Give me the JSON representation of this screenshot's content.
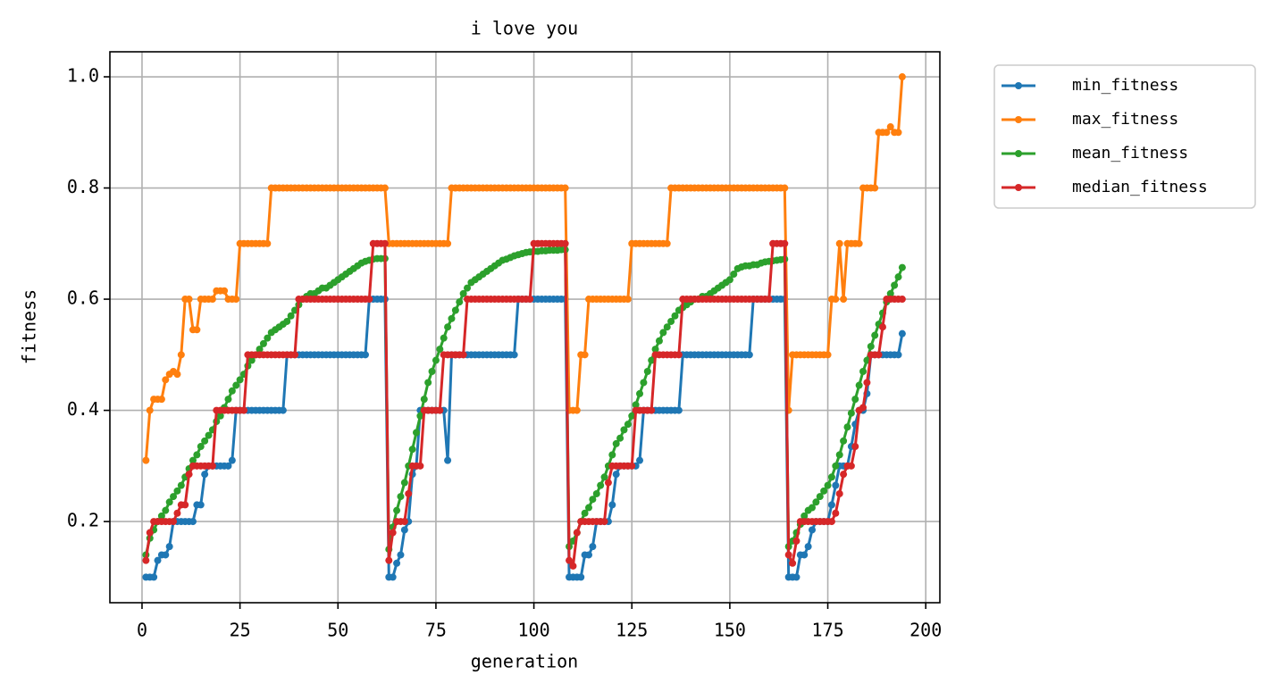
{
  "chart_data": {
    "type": "line",
    "title": "i love you",
    "xlabel": "generation",
    "ylabel": "fitness",
    "xlim": [
      -8.2,
      203.6
    ],
    "xticks": [
      0,
      25,
      50,
      75,
      100,
      125,
      150,
      175,
      200
    ],
    "ylim": [
      0.054,
      1.045
    ],
    "yticks": [
      0.2,
      0.4,
      0.6,
      0.8,
      {
        "value": 1,
        "label": "1.0"
      }
    ],
    "grid": true,
    "legend": "outside upper right",
    "x": [
      1,
      2,
      3,
      4,
      5,
      6,
      7,
      8,
      9,
      10,
      11,
      12,
      13,
      14,
      15,
      16,
      17,
      18,
      19,
      20,
      21,
      22,
      23,
      24,
      25,
      26,
      27,
      28,
      29,
      30,
      31,
      32,
      33,
      34,
      35,
      36,
      37,
      38,
      39,
      40,
      41,
      42,
      43,
      44,
      45,
      46,
      47,
      48,
      49,
      50,
      51,
      52,
      53,
      54,
      55,
      56,
      57,
      58,
      59,
      60,
      61,
      62,
      63,
      64,
      65,
      66,
      67,
      68,
      69,
      70,
      71,
      72,
      73,
      74,
      75,
      76,
      77,
      78,
      79,
      80,
      81,
      82,
      83,
      84,
      85,
      86,
      87,
      88,
      89,
      90,
      91,
      92,
      93,
      94,
      95,
      96,
      97,
      98,
      99,
      100,
      101,
      102,
      103,
      104,
      105,
      106,
      107,
      108,
      109,
      110,
      111,
      112,
      113,
      114,
      115,
      116,
      117,
      118,
      119,
      120,
      121,
      122,
      123,
      124,
      125,
      126,
      127,
      128,
      129,
      130,
      131,
      132,
      133,
      134,
      135,
      136,
      137,
      138,
      139,
      140,
      141,
      142,
      143,
      144,
      145,
      146,
      147,
      148,
      149,
      150,
      151,
      152,
      153,
      154,
      155,
      156,
      157,
      158,
      159,
      160,
      161,
      162,
      163,
      164,
      165,
      166,
      167,
      168,
      169,
      170,
      171,
      172,
      173,
      174,
      175,
      176,
      177,
      178,
      179,
      180,
      181,
      182,
      183,
      184,
      185,
      186,
      187,
      188,
      189,
      190,
      191,
      192,
      193,
      194
    ],
    "series": [
      {
        "name": "min_fitness",
        "color": "#1f77b4",
        "values": [
          0.1,
          0.1,
          0.1,
          0.13,
          0.14,
          0.14,
          0.155,
          0.2,
          0.2,
          0.2,
          0.2,
          0.2,
          0.2,
          0.23,
          0.23,
          0.285,
          0.3,
          0.3,
          0.3,
          0.3,
          0.3,
          0.3,
          0.31,
          0.4,
          0.4,
          0.4,
          0.4,
          0.4,
          0.4,
          0.4,
          0.4,
          0.4,
          0.4,
          0.4,
          0.4,
          0.4,
          0.5,
          0.5,
          0.5,
          0.5,
          0.5,
          0.5,
          0.5,
          0.5,
          0.5,
          0.5,
          0.5,
          0.5,
          0.5,
          0.5,
          0.5,
          0.5,
          0.5,
          0.5,
          0.5,
          0.5,
          0.5,
          0.6,
          0.6,
          0.6,
          0.6,
          0.6,
          0.1,
          0.1,
          0.125,
          0.14,
          0.185,
          0.2,
          0.285,
          0.3,
          0.4,
          0.4,
          0.4,
          0.4,
          0.4,
          0.4,
          0.4,
          0.31,
          0.5,
          0.5,
          0.5,
          0.5,
          0.5,
          0.5,
          0.5,
          0.5,
          0.5,
          0.5,
          0.5,
          0.5,
          0.5,
          0.5,
          0.5,
          0.5,
          0.5,
          0.6,
          0.6,
          0.6,
          0.6,
          0.6,
          0.6,
          0.6,
          0.6,
          0.6,
          0.6,
          0.6,
          0.6,
          0.6,
          0.1,
          0.1,
          0.1,
          0.1,
          0.14,
          0.14,
          0.155,
          0.2,
          0.2,
          0.2,
          0.2,
          0.23,
          0.285,
          0.3,
          0.3,
          0.3,
          0.3,
          0.3,
          0.31,
          0.4,
          0.4,
          0.4,
          0.4,
          0.4,
          0.4,
          0.4,
          0.4,
          0.4,
          0.4,
          0.5,
          0.5,
          0.5,
          0.5,
          0.5,
          0.5,
          0.5,
          0.5,
          0.5,
          0.5,
          0.5,
          0.5,
          0.5,
          0.5,
          0.5,
          0.5,
          0.5,
          0.5,
          0.6,
          0.6,
          0.6,
          0.6,
          0.6,
          0.6,
          0.6,
          0.6,
          0.6,
          0.1,
          0.1,
          0.1,
          0.14,
          0.14,
          0.155,
          0.185,
          0.2,
          0.2,
          0.2,
          0.2,
          0.23,
          0.265,
          0.3,
          0.3,
          0.3,
          0.335,
          0.375,
          0.4,
          0.4,
          0.43,
          0.5,
          0.5,
          0.5,
          0.5,
          0.5,
          0.5,
          0.5,
          0.5,
          0.538
        ]
      },
      {
        "name": "max_fitness",
        "color": "#ff7f0e",
        "values": [
          0.31,
          0.4,
          0.42,
          0.42,
          0.42,
          0.455,
          0.465,
          0.47,
          0.465,
          0.5,
          0.6,
          0.6,
          0.545,
          0.545,
          0.6,
          0.6,
          0.6,
          0.6,
          0.615,
          0.615,
          0.615,
          0.6,
          0.6,
          0.6,
          0.7,
          0.7,
          0.7,
          0.7,
          0.7,
          0.7,
          0.7,
          0.7,
          0.8,
          0.8,
          0.8,
          0.8,
          0.8,
          0.8,
          0.8,
          0.8,
          0.8,
          0.8,
          0.8,
          0.8,
          0.8,
          0.8,
          0.8,
          0.8,
          0.8,
          0.8,
          0.8,
          0.8,
          0.8,
          0.8,
          0.8,
          0.8,
          0.8,
          0.8,
          0.8,
          0.8,
          0.8,
          0.8,
          0.7,
          0.7,
          0.7,
          0.7,
          0.7,
          0.7,
          0.7,
          0.7,
          0.7,
          0.7,
          0.7,
          0.7,
          0.7,
          0.7,
          0.7,
          0.7,
          0.8,
          0.8,
          0.8,
          0.8,
          0.8,
          0.8,
          0.8,
          0.8,
          0.8,
          0.8,
          0.8,
          0.8,
          0.8,
          0.8,
          0.8,
          0.8,
          0.8,
          0.8,
          0.8,
          0.8,
          0.8,
          0.8,
          0.8,
          0.8,
          0.8,
          0.8,
          0.8,
          0.8,
          0.8,
          0.8,
          0.4,
          0.4,
          0.4,
          0.5,
          0.5,
          0.6,
          0.6,
          0.6,
          0.6,
          0.6,
          0.6,
          0.6,
          0.6,
          0.6,
          0.6,
          0.6,
          0.7,
          0.7,
          0.7,
          0.7,
          0.7,
          0.7,
          0.7,
          0.7,
          0.7,
          0.7,
          0.8,
          0.8,
          0.8,
          0.8,
          0.8,
          0.8,
          0.8,
          0.8,
          0.8,
          0.8,
          0.8,
          0.8,
          0.8,
          0.8,
          0.8,
          0.8,
          0.8,
          0.8,
          0.8,
          0.8,
          0.8,
          0.8,
          0.8,
          0.8,
          0.8,
          0.8,
          0.8,
          0.8,
          0.8,
          0.8,
          0.4,
          0.5,
          0.5,
          0.5,
          0.5,
          0.5,
          0.5,
          0.5,
          0.5,
          0.5,
          0.5,
          0.6,
          0.6,
          0.7,
          0.6,
          0.7,
          0.7,
          0.7,
          0.7,
          0.8,
          0.8,
          0.8,
          0.8,
          0.9,
          0.9,
          0.9,
          0.91,
          0.9,
          0.9,
          1.0
        ]
      },
      {
        "name": "mean_fitness",
        "color": "#2ca02c",
        "values": [
          0.14,
          0.17,
          0.185,
          0.2,
          0.21,
          0.22,
          0.235,
          0.245,
          0.255,
          0.265,
          0.28,
          0.295,
          0.31,
          0.32,
          0.335,
          0.345,
          0.355,
          0.365,
          0.38,
          0.39,
          0.405,
          0.42,
          0.435,
          0.445,
          0.455,
          0.465,
          0.48,
          0.49,
          0.5,
          0.51,
          0.52,
          0.53,
          0.54,
          0.545,
          0.55,
          0.555,
          0.56,
          0.57,
          0.58,
          0.59,
          0.6,
          0.605,
          0.61,
          0.61,
          0.615,
          0.62,
          0.62,
          0.625,
          0.63,
          0.635,
          0.64,
          0.645,
          0.65,
          0.655,
          0.66,
          0.665,
          0.668,
          0.67,
          0.672,
          0.673,
          0.673,
          0.673,
          0.15,
          0.19,
          0.22,
          0.245,
          0.27,
          0.3,
          0.33,
          0.36,
          0.39,
          0.42,
          0.45,
          0.47,
          0.49,
          0.51,
          0.53,
          0.55,
          0.565,
          0.58,
          0.595,
          0.61,
          0.62,
          0.63,
          0.635,
          0.64,
          0.645,
          0.65,
          0.655,
          0.66,
          0.665,
          0.67,
          0.672,
          0.675,
          0.678,
          0.68,
          0.682,
          0.684,
          0.685,
          0.686,
          0.686,
          0.687,
          0.687,
          0.688,
          0.688,
          0.688,
          0.689,
          0.689,
          0.155,
          0.165,
          0.18,
          0.2,
          0.215,
          0.225,
          0.24,
          0.25,
          0.265,
          0.28,
          0.3,
          0.32,
          0.34,
          0.35,
          0.365,
          0.375,
          0.39,
          0.41,
          0.43,
          0.45,
          0.47,
          0.49,
          0.51,
          0.525,
          0.54,
          0.55,
          0.56,
          0.57,
          0.58,
          0.585,
          0.59,
          0.595,
          0.6,
          0.6,
          0.605,
          0.605,
          0.61,
          0.615,
          0.62,
          0.625,
          0.63,
          0.635,
          0.645,
          0.655,
          0.658,
          0.66,
          0.66,
          0.662,
          0.662,
          0.665,
          0.667,
          0.668,
          0.669,
          0.67,
          0.671,
          0.672,
          0.155,
          0.165,
          0.18,
          0.195,
          0.21,
          0.22,
          0.225,
          0.235,
          0.245,
          0.255,
          0.265,
          0.28,
          0.3,
          0.32,
          0.345,
          0.37,
          0.395,
          0.42,
          0.445,
          0.47,
          0.49,
          0.515,
          0.535,
          0.555,
          0.575,
          0.595,
          0.61,
          0.625,
          0.64,
          0.657
        ]
      },
      {
        "name": "median_fitness",
        "color": "#d62728",
        "values": [
          0.13,
          0.18,
          0.2,
          0.2,
          0.2,
          0.2,
          0.2,
          0.2,
          0.215,
          0.23,
          0.23,
          0.285,
          0.3,
          0.3,
          0.3,
          0.3,
          0.3,
          0.3,
          0.4,
          0.4,
          0.4,
          0.4,
          0.4,
          0.4,
          0.4,
          0.4,
          0.5,
          0.5,
          0.5,
          0.5,
          0.5,
          0.5,
          0.5,
          0.5,
          0.5,
          0.5,
          0.5,
          0.5,
          0.5,
          0.6,
          0.6,
          0.6,
          0.6,
          0.6,
          0.6,
          0.6,
          0.6,
          0.6,
          0.6,
          0.6,
          0.6,
          0.6,
          0.6,
          0.6,
          0.6,
          0.6,
          0.6,
          0.6,
          0.7,
          0.7,
          0.7,
          0.7,
          0.13,
          0.18,
          0.2,
          0.2,
          0.2,
          0.25,
          0.3,
          0.3,
          0.3,
          0.4,
          0.4,
          0.4,
          0.4,
          0.4,
          0.5,
          0.5,
          0.5,
          0.5,
          0.5,
          0.5,
          0.6,
          0.6,
          0.6,
          0.6,
          0.6,
          0.6,
          0.6,
          0.6,
          0.6,
          0.6,
          0.6,
          0.6,
          0.6,
          0.6,
          0.6,
          0.6,
          0.6,
          0.7,
          0.7,
          0.7,
          0.7,
          0.7,
          0.7,
          0.7,
          0.7,
          0.7,
          0.13,
          0.12,
          0.18,
          0.2,
          0.2,
          0.2,
          0.2,
          0.2,
          0.2,
          0.2,
          0.27,
          0.3,
          0.3,
          0.3,
          0.3,
          0.3,
          0.3,
          0.4,
          0.4,
          0.4,
          0.4,
          0.4,
          0.5,
          0.5,
          0.5,
          0.5,
          0.5,
          0.5,
          0.5,
          0.6,
          0.6,
          0.6,
          0.6,
          0.6,
          0.6,
          0.6,
          0.6,
          0.6,
          0.6,
          0.6,
          0.6,
          0.6,
          0.6,
          0.6,
          0.6,
          0.6,
          0.6,
          0.6,
          0.6,
          0.6,
          0.6,
          0.6,
          0.7,
          0.7,
          0.7,
          0.7,
          0.14,
          0.125,
          0.165,
          0.2,
          0.2,
          0.2,
          0.2,
          0.2,
          0.2,
          0.2,
          0.2,
          0.2,
          0.215,
          0.25,
          0.285,
          0.3,
          0.3,
          0.335,
          0.4,
          0.405,
          0.45,
          0.5,
          0.5,
          0.5,
          0.55,
          0.6,
          0.6,
          0.6,
          0.6,
          0.6
        ]
      }
    ]
  }
}
